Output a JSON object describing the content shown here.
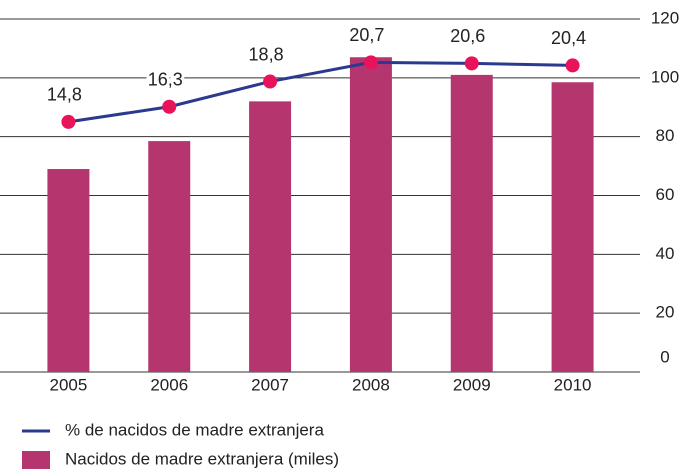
{
  "chart_data": {
    "type": "bar_line",
    "categories": [
      "2005",
      "2006",
      "2007",
      "2008",
      "2009",
      "2010"
    ],
    "series": [
      {
        "name": "Nacidos de madre extranjera (miles)",
        "type": "bar",
        "color": "#b5366f",
        "values": [
          69,
          78.5,
          92,
          107,
          101,
          98.5
        ]
      },
      {
        "name": "% de nacidos de madre extranjera",
        "type": "line",
        "axis": "y2",
        "color": "#2b3a8f",
        "marker_color": "#e8135a",
        "values": [
          14.8,
          16.3,
          18.8,
          20.7,
          20.6,
          20.4
        ],
        "value_labels": [
          "14,8",
          "16,3",
          "18,8",
          "20,7",
          "20,6",
          "20,4"
        ]
      }
    ],
    "ylim": [
      0,
      120
    ],
    "yticks": [
      0,
      20,
      40,
      60,
      80,
      100,
      120
    ],
    "y2lim": [
      -10,
      25
    ],
    "grid": true,
    "legend": "bottom-left"
  }
}
